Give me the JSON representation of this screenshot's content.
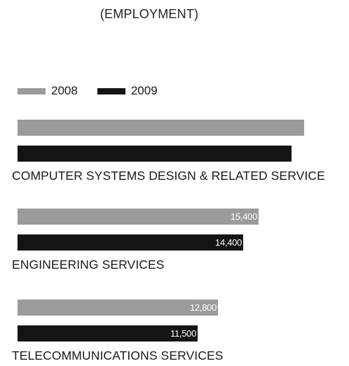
{
  "page": {
    "subtitle": "(EMPLOYMENT)"
  },
  "colors": {
    "series_2008": "#9b9b9b",
    "series_2009": "#141414",
    "label_text": "#1a1a1a",
    "bar_value_text": "#ffffff"
  },
  "chart_data": {
    "type": "bar",
    "orientation": "horizontal",
    "title": "",
    "subtitle": "(EMPLOYMENT)",
    "xlabel": "",
    "ylabel": "",
    "legend_placement": "top-left",
    "grid": false,
    "categories": [
      "COMPUTER SYSTEMS DESIGN & RELATED SERVICE",
      "ENGINEERING SERVICES",
      "TELECOMMUNICATIONS SERVICES"
    ],
    "series": [
      {
        "name": "2008",
        "values": [
          18300,
          15400,
          12800
        ],
        "labels": [
          "",
          "15,400",
          "12,800"
        ]
      },
      {
        "name": "2009",
        "values": [
          17500,
          14400,
          11500
        ],
        "labels": [
          "",
          "14,400",
          "11,500"
        ]
      }
    ]
  }
}
